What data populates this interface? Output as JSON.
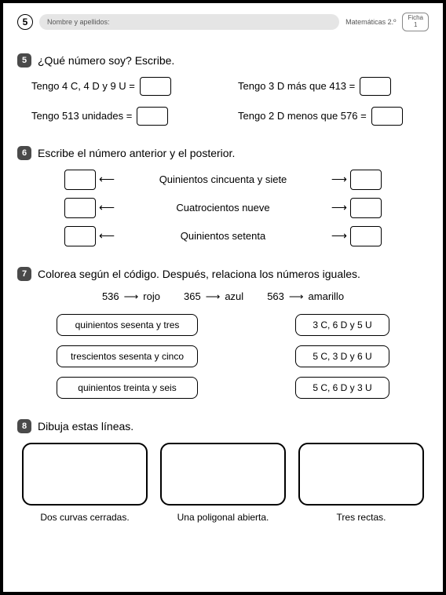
{
  "header": {
    "page_number": "5",
    "name_label": "Nombre y apellidos:",
    "subject": "Matemáticas 2.º",
    "ficha_label": "Ficha",
    "ficha_num": "1"
  },
  "ex5": {
    "num": "5",
    "title": "¿Qué número soy? Escribe.",
    "items": [
      "Tengo 4 C, 4 D y 9 U =",
      "Tengo 3 D más que 413 =",
      "Tengo 513 unidades =",
      "Tengo 2 D menos que 576 ="
    ]
  },
  "ex6": {
    "num": "6",
    "title": "Escribe el número anterior y el posterior.",
    "rows": [
      "Quinientos cincuenta y siete",
      "Cuatrocientos nueve",
      "Quinientos setenta"
    ]
  },
  "ex7": {
    "num": "7",
    "title": "Colorea según el código. Después, relaciona los números iguales.",
    "legend": [
      {
        "num": "536",
        "color": "rojo"
      },
      {
        "num": "365",
        "color": "azul"
      },
      {
        "num": "563",
        "color": "amarillo"
      }
    ],
    "pairs": [
      {
        "left": "quinientos sesenta y tres",
        "right": "3 C, 6 D y 5 U"
      },
      {
        "left": "trescientos sesenta y cinco",
        "right": "5 C, 3 D y 6 U"
      },
      {
        "left": "quinientos treinta y seis",
        "right": "5 C, 6 D y 3 U"
      }
    ]
  },
  "ex8": {
    "num": "8",
    "title": "Dibuja estas líneas.",
    "items": [
      "Dos curvas cerradas.",
      "Una poligonal abierta.",
      "Tres rectas."
    ]
  },
  "arrows": {
    "left": "⟵",
    "right": "⟶"
  }
}
